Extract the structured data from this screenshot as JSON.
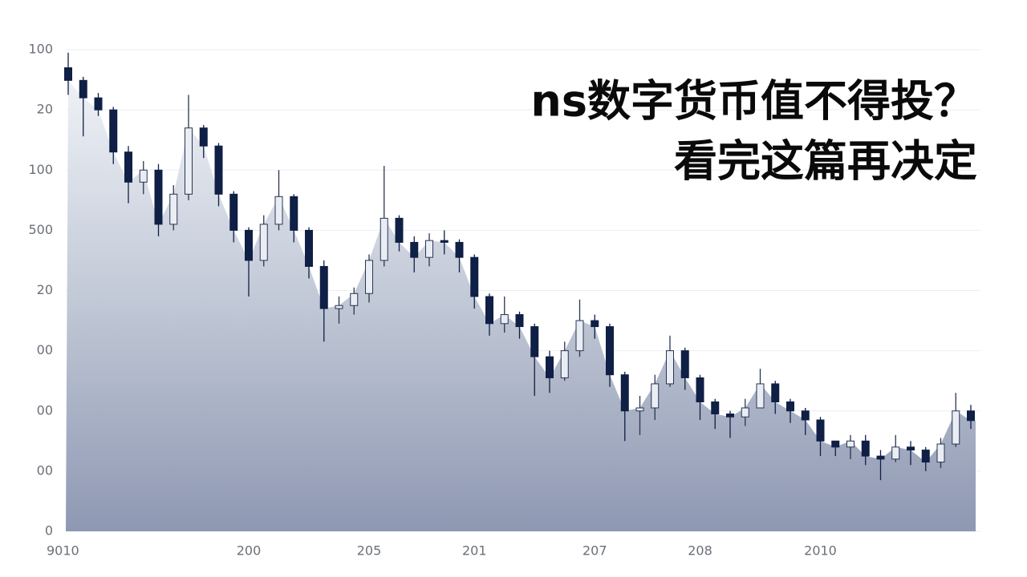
{
  "chart_data": {
    "type": "candlestick",
    "title": [
      "ns数字货币值不得投？",
      "看完这篇再决定"
    ],
    "categories": [
      "9010",
      null,
      null,
      null,
      null,
      null,
      null,
      null,
      null,
      null,
      null,
      null,
      "200",
      null,
      null,
      null,
      null,
      null,
      null,
      null,
      "205",
      null,
      null,
      null,
      null,
      null,
      null,
      "201",
      null,
      null,
      null,
      null,
      null,
      null,
      null,
      "207",
      null,
      null,
      null,
      null,
      null,
      null,
      "208",
      null,
      null,
      null,
      null,
      null,
      null,
      null,
      "2010",
      null,
      null,
      null,
      null,
      null,
      null,
      null,
      null,
      null,
      null
    ],
    "open": [
      770,
      749,
      720,
      700,
      630,
      580,
      600,
      510,
      560,
      670,
      640,
      560,
      500,
      450,
      510,
      556,
      500,
      440,
      370,
      375,
      395,
      450,
      520,
      480,
      455,
      483,
      480,
      455,
      390,
      345,
      360,
      340,
      290,
      255,
      300,
      350,
      340,
      260,
      200,
      205,
      245,
      300,
      255,
      215,
      195,
      190,
      205,
      245,
      215,
      200,
      185,
      150,
      140,
      150,
      125,
      120,
      140,
      135,
      115,
      145,
      200
    ],
    "high": [
      795,
      755,
      728,
      705,
      640,
      615,
      610,
      575,
      725,
      675,
      645,
      565,
      505,
      525,
      600,
      560,
      505,
      450,
      390,
      405,
      460,
      607,
      525,
      490,
      495,
      500,
      485,
      460,
      395,
      390,
      365,
      345,
      300,
      315,
      385,
      360,
      345,
      265,
      225,
      260,
      325,
      305,
      260,
      220,
      200,
      220,
      270,
      250,
      220,
      205,
      190,
      150,
      160,
      160,
      135,
      160,
      150,
      140,
      155,
      230,
      210
    ],
    "low": [
      725,
      656,
      690,
      610,
      545,
      560,
      490,
      500,
      550,
      620,
      540,
      480,
      390,
      440,
      500,
      480,
      420,
      315,
      345,
      360,
      380,
      440,
      465,
      430,
      440,
      460,
      430,
      370,
      325,
      330,
      320,
      225,
      230,
      250,
      290,
      320,
      240,
      150,
      160,
      185,
      240,
      235,
      185,
      170,
      155,
      175,
      205,
      195,
      180,
      160,
      125,
      125,
      120,
      110,
      85,
      115,
      110,
      100,
      105,
      140,
      170
    ],
    "close": [
      749,
      720,
      700,
      630,
      580,
      600,
      510,
      560,
      670,
      640,
      560,
      500,
      450,
      510,
      556,
      500,
      440,
      370,
      375,
      395,
      450,
      520,
      480,
      455,
      483,
      480,
      455,
      390,
      345,
      360,
      340,
      290,
      255,
      300,
      350,
      340,
      260,
      200,
      205,
      245,
      300,
      255,
      215,
      195,
      190,
      205,
      245,
      215,
      200,
      185,
      150,
      140,
      150,
      125,
      120,
      140,
      135,
      115,
      145,
      200,
      184
    ],
    "up_color": "#e9edf4",
    "down_color": "#0f1f45",
    "ylim": [
      0,
      800
    ],
    "yticks": [
      0,
      {
        "value": 100,
        "label": "00"
      },
      {
        "value": 200,
        "label": "00"
      },
      {
        "value": 300,
        "label": "00"
      },
      {
        "value": 400,
        "label": "20"
      },
      500,
      {
        "value": 600,
        "label": "100"
      },
      {
        "value": 700,
        "label": "20"
      },
      {
        "value": 800,
        "label": "100"
      }
    ],
    "grid": true
  }
}
